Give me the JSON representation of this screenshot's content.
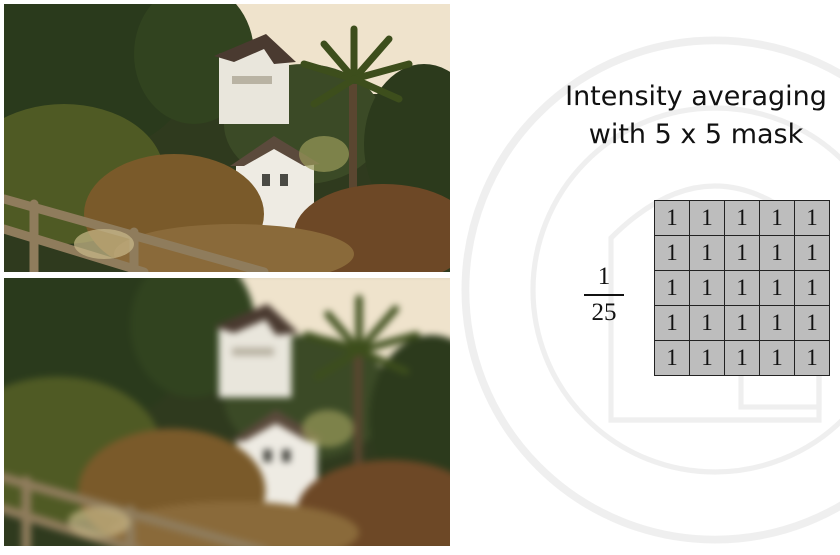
{
  "slide": {
    "title_line1": "Intensity averaging",
    "title_line2": "with 5 x 5 mask"
  },
  "fraction": {
    "numerator": "1",
    "denominator": "25"
  },
  "mask": {
    "rows": [
      [
        "1",
        "1",
        "1",
        "1",
        "1"
      ],
      [
        "1",
        "1",
        "1",
        "1",
        "1"
      ],
      [
        "1",
        "1",
        "1",
        "1",
        "1"
      ],
      [
        "1",
        "1",
        "1",
        "1",
        "1"
      ],
      [
        "1",
        "1",
        "1",
        "1",
        "1"
      ]
    ],
    "cell_color": "#bdbdbd"
  },
  "images": {
    "original": "photo of hillside houses with palm tree",
    "blurred": "same photo after 5x5 averaging"
  }
}
